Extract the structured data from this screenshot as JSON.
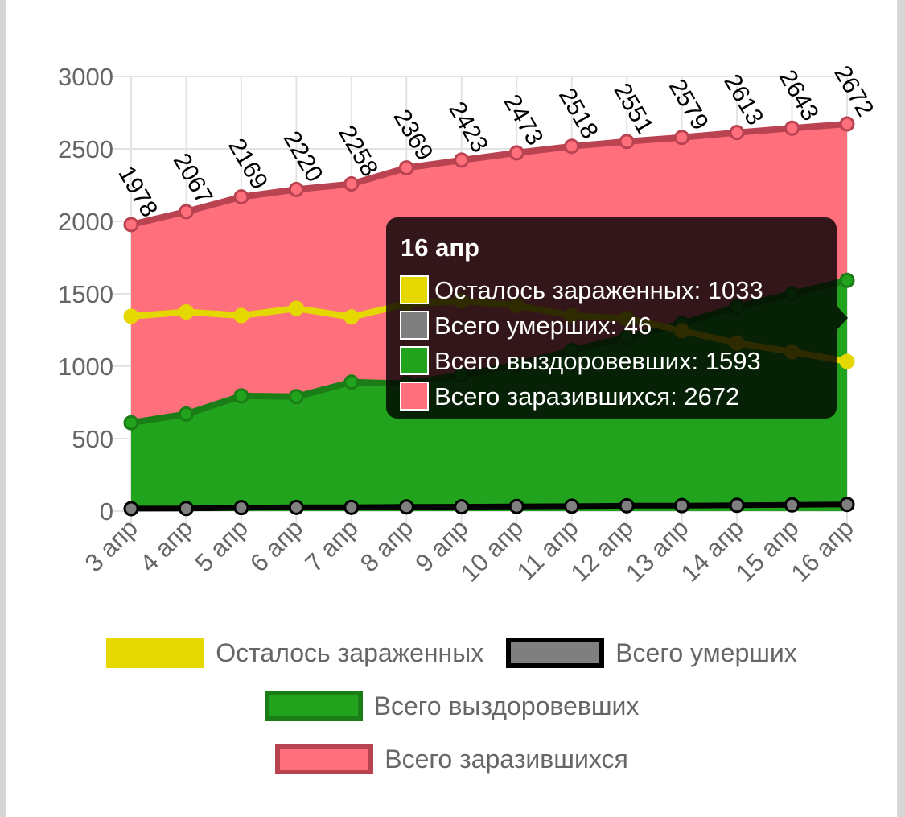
{
  "chart_data": {
    "type": "area",
    "categories": [
      "3 апр",
      "4 апр",
      "5 апр",
      "6 апр",
      "7 апр",
      "8 апр",
      "9 апр",
      "10 апр",
      "11 апр",
      "12 апр",
      "13 апр",
      "14 апр",
      "15 апр",
      "16 апр"
    ],
    "series": [
      {
        "name": "Осталось зараженных",
        "type": "line",
        "color": "#e5d800",
        "values": [
          1345,
          1375,
          1350,
          1400,
          1340,
          1430,
          1450,
          1420,
          1350,
          1330,
          1245,
          1160,
          1100,
          1033
        ]
      },
      {
        "name": "Всего умерших",
        "type": "line",
        "color": "#7f7f7f",
        "border": "#000000",
        "values": [
          17,
          18,
          24,
          26,
          26,
          29,
          30,
          32,
          34,
          37,
          38,
          40,
          43,
          46
        ]
      },
      {
        "name": "Всего выздоровевших",
        "type": "area",
        "color": "#22a31d",
        "border": "#1b7d16",
        "values": [
          610,
          670,
          795,
          790,
          890,
          880,
          940,
          1010,
          1110,
          1200,
          1295,
          1410,
          1500,
          1593
        ]
      },
      {
        "name": "Всего заразившихся",
        "type": "area",
        "color": "#ff6f7c",
        "border": "#b94350",
        "values": [
          1978,
          2067,
          2169,
          2220,
          2258,
          2369,
          2423,
          2473,
          2518,
          2551,
          2579,
          2613,
          2643,
          2672
        ]
      }
    ],
    "data_labels": [
      "1978",
      "2067",
      "2169",
      "2220",
      "2258",
      "2369",
      "2423",
      "2473",
      "2518",
      "2551",
      "2579",
      "2613",
      "2643",
      "2672"
    ],
    "yticks": [
      "3000",
      "2500",
      "2000",
      "1500",
      "1000",
      "500",
      "0"
    ],
    "ylim": [
      0,
      3000
    ],
    "grid": true,
    "legend_position": "bottom",
    "tooltip": {
      "title": "16 апр",
      "lines": [
        {
          "text": "Осталось зараженных: 1033",
          "color": "#e5d800"
        },
        {
          "text": "Всего умерших: 46",
          "color": "#7f7f7f"
        },
        {
          "text": "Всего выздоровевших: 1593",
          "color": "#22a31d"
        },
        {
          "text": "Всего заразившихся: 2672",
          "color": "#ff6f7c"
        }
      ]
    }
  },
  "legend": {
    "items": [
      {
        "label": "Осталось зараженных",
        "fill": "#e5d800",
        "stroke": "#e5d800"
      },
      {
        "label": "Всего умерших",
        "fill": "#7f7f7f",
        "stroke": "#000000"
      },
      {
        "label": "Всего выздоровевших",
        "fill": "#22a31d",
        "stroke": "#1b7d16"
      },
      {
        "label": "Всего заразившихся",
        "fill": "#ff6f7c",
        "stroke": "#b94350"
      }
    ]
  }
}
